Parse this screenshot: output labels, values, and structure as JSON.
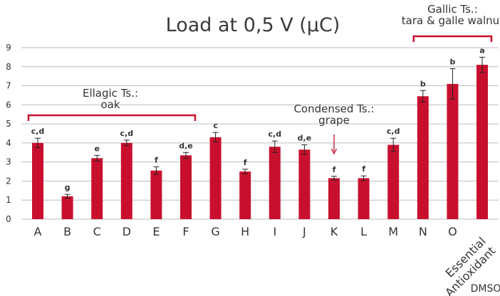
{
  "chart_data": {
    "type": "bar",
    "title": "Load at  0,5 V (µC)",
    "xlabel": "",
    "ylabel": "",
    "ylim": [
      0,
      9
    ],
    "yticks": [
      0,
      1,
      2,
      3,
      4,
      5,
      6,
      7,
      8,
      9
    ],
    "grid": true,
    "categories": [
      "A",
      "B",
      "C",
      "D",
      "E",
      "F",
      "G",
      "H",
      "I",
      "J",
      "K",
      "L",
      "M",
      "N",
      "O",
      "Essential Antioxidant"
    ],
    "values": [
      4.0,
      1.2,
      3.2,
      4.0,
      2.55,
      3.35,
      4.3,
      2.5,
      3.8,
      3.65,
      2.15,
      2.15,
      3.9,
      6.45,
      7.1,
      8.1
    ],
    "errors": [
      0.25,
      0.1,
      0.15,
      0.15,
      0.2,
      0.15,
      0.25,
      0.12,
      0.3,
      0.25,
      0.1,
      0.12,
      0.35,
      0.3,
      0.8,
      0.4
    ],
    "significance": [
      "c,d",
      "g",
      "e",
      "c,d",
      "f",
      "d,e",
      "c",
      "f",
      "c,d",
      "d,e",
      "f",
      "f",
      "c,d",
      "b",
      "b",
      "a"
    ],
    "bar_color": "#c8102e",
    "group_color": "#c8102e",
    "dmso_label": "DMSO",
    "annotations": [
      {
        "lines": [
          "Ellagic Ts.:",
          "oak"
        ],
        "from": "A",
        "to": "F"
      },
      {
        "lines": [
          "Condensed Ts.:",
          "grape"
        ],
        "target": "K"
      },
      {
        "lines": [
          "Gallic Ts.:",
          "tara & galle walnut"
        ],
        "from": "N",
        "to": "Essential Antioxidant"
      }
    ]
  }
}
